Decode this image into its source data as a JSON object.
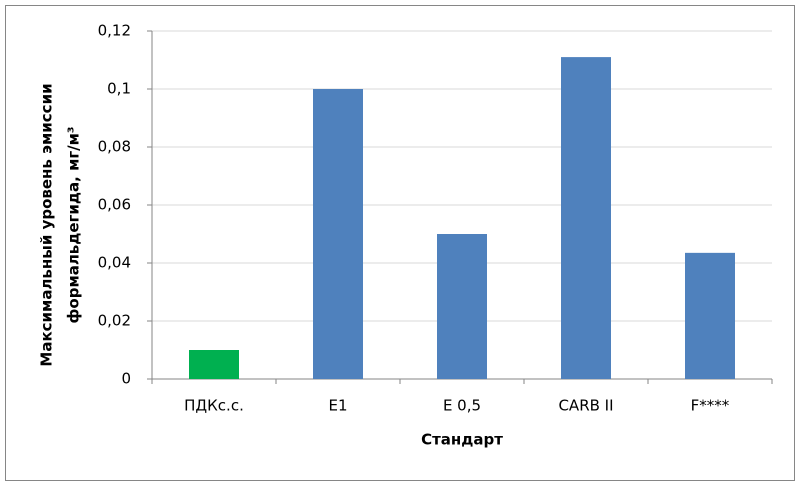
{
  "chart_data": {
    "type": "bar",
    "y_label": [
      "Максимальный уровень эмиссии",
      "формальдегида, мг/м³"
    ],
    "x_label": "Стандарт",
    "categories": [
      "ПДКс.с.",
      "E1",
      "E 0,5",
      "CARB II",
      "F****"
    ],
    "values": [
      0.01,
      0.1,
      0.05,
      0.111,
      0.0435
    ],
    "colors": [
      "#00b050",
      "#4f81bd",
      "#4f81bd",
      "#4f81bd",
      "#4f81bd"
    ],
    "ylim": [
      0,
      0.12
    ],
    "yticks": [
      0,
      {
        "value": 0.02,
        "label": "0,02"
      },
      {
        "value": 0.04,
        "label": "0,04"
      },
      {
        "value": 0.06,
        "label": "0,06"
      },
      {
        "value": 0.08,
        "label": "0,08"
      },
      {
        "value": 0.1,
        "label": "0,1"
      },
      {
        "value": 0.12,
        "label": "0,12"
      }
    ],
    "grid": true
  }
}
